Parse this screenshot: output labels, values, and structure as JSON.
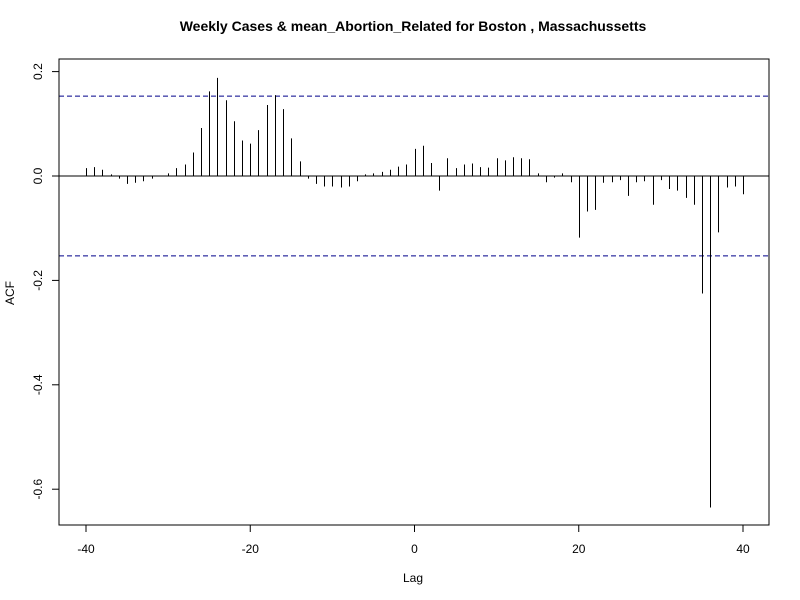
{
  "chart_data": {
    "type": "bar",
    "title": "Weekly Cases & mean_Abortion_Related for Boston , Massachussetts",
    "xlabel": "Lag",
    "ylabel": "ACF",
    "xlim": [
      -40,
      40
    ],
    "ylim": [
      -0.65,
      0.22
    ],
    "x_ticks": [
      -40,
      -20,
      0,
      20,
      40
    ],
    "x_tick_labels": [
      "-40",
      "-20",
      "0",
      "20",
      "40"
    ],
    "y_ticks": [
      -0.6,
      -0.4,
      -0.2,
      0.0,
      0.2
    ],
    "y_tick_labels": [
      "-0.6",
      "-0.4",
      "-0.2",
      "0.0",
      "0.2"
    ],
    "confidence_limit": 0.153,
    "zero_line": true,
    "grid": false,
    "colors": {
      "bars": "#000000",
      "confidence": "#00008b",
      "axis": "#000000"
    },
    "x": [
      -40,
      -39,
      -38,
      -37,
      -36,
      -35,
      -34,
      -33,
      -32,
      -31,
      -30,
      -29,
      -28,
      -27,
      -26,
      -25,
      -24,
      -23,
      -22,
      -21,
      -20,
      -19,
      -18,
      -17,
      -16,
      -15,
      -14,
      -13,
      -12,
      -11,
      -10,
      -9,
      -8,
      -7,
      -6,
      -5,
      -4,
      -3,
      -2,
      -1,
      0,
      1,
      2,
      3,
      4,
      5,
      6,
      7,
      8,
      9,
      10,
      11,
      12,
      13,
      14,
      15,
      16,
      17,
      18,
      19,
      20,
      21,
      22,
      23,
      24,
      25,
      26,
      27,
      28,
      29,
      30,
      31,
      32,
      33,
      34,
      35,
      36,
      37,
      38,
      39,
      40
    ],
    "values": [
      0.015,
      0.017,
      0.012,
      0.003,
      -0.005,
      -0.015,
      -0.013,
      -0.01,
      -0.005,
      0.0,
      0.005,
      0.015,
      0.022,
      0.045,
      0.092,
      0.162,
      0.188,
      0.145,
      0.105,
      0.068,
      0.062,
      0.088,
      0.136,
      0.155,
      0.128,
      0.072,
      0.028,
      -0.005,
      -0.015,
      -0.02,
      -0.02,
      -0.022,
      -0.02,
      -0.01,
      0.003,
      0.005,
      0.008,
      0.012,
      0.018,
      0.022,
      0.052,
      0.058,
      0.025,
      -0.028,
      0.034,
      0.015,
      0.022,
      0.024,
      0.017,
      0.016,
      0.034,
      0.03,
      0.036,
      0.034,
      0.032,
      0.005,
      -0.012,
      -0.003,
      0.005,
      -0.012,
      -0.118,
      -0.068,
      -0.065,
      -0.013,
      -0.012,
      -0.008,
      -0.038,
      -0.012,
      -0.01,
      -0.055,
      -0.008,
      -0.025,
      -0.028,
      -0.042,
      -0.055,
      -0.225,
      -0.635,
      -0.108,
      -0.022,
      -0.02,
      -0.035
    ]
  }
}
